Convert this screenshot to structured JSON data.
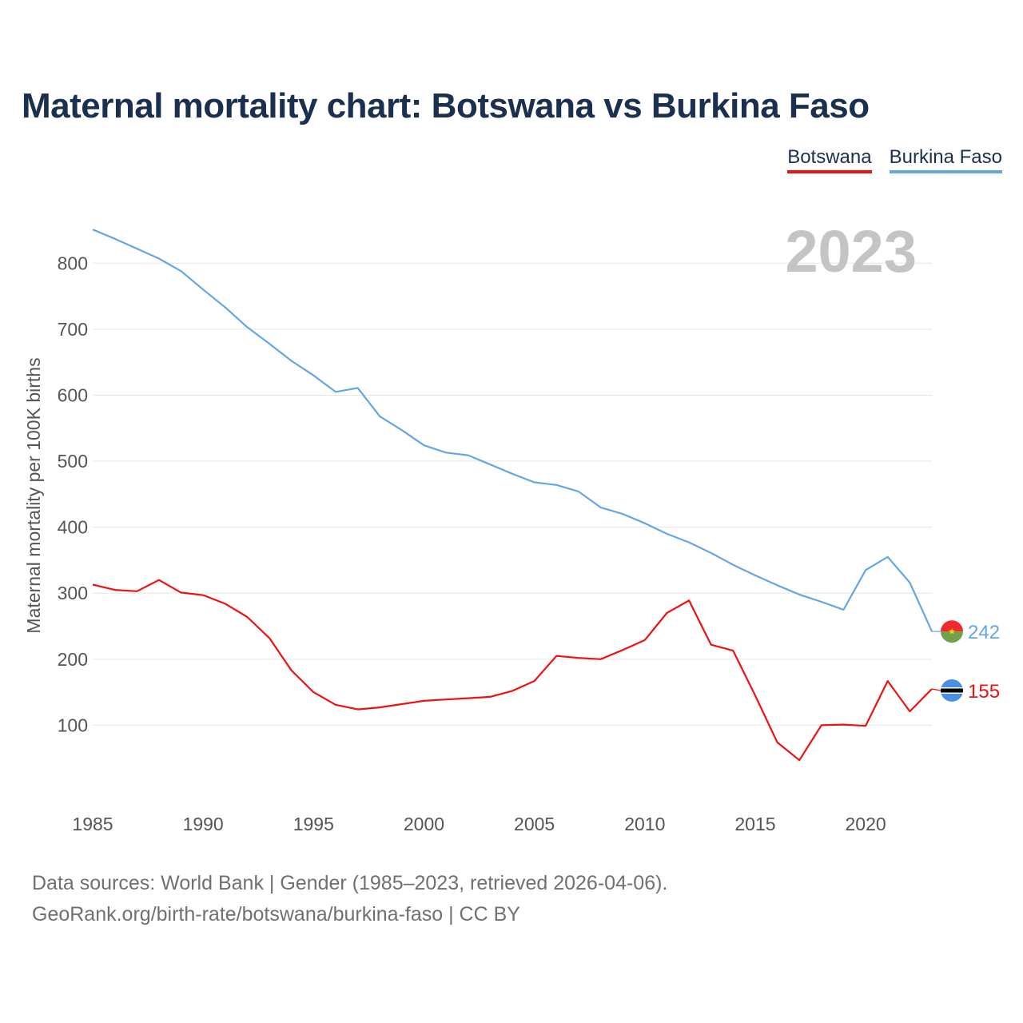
{
  "title": "Maternal mortality chart: Botswana vs Burkina Faso",
  "legend": [
    {
      "label": "Botswana",
      "color": "#ee1111"
    },
    {
      "label": "Burkina Faso",
      "color": "#63a6e8"
    }
  ],
  "footer": {
    "line1": "Data sources: World Bank | Gender (1985–2023, retrieved 2026-04-06).",
    "line2": "GeoRank.org/birth-rate/botswana/burkina-faso | CC BY"
  },
  "chart_data": {
    "type": "line",
    "title": "Maternal mortality chart: Botswana vs Burkina Faso",
    "year_label": "2023",
    "xlabel": "",
    "ylabel": "Maternal mortality per 100K births",
    "xlim": [
      1985,
      2023
    ],
    "ylim": [
      0,
      850
    ],
    "x_ticks": [
      1985,
      1990,
      1995,
      2000,
      2005,
      2010,
      2015,
      2020
    ],
    "y_ticks": [
      100,
      200,
      300,
      400,
      500,
      600,
      700,
      800
    ],
    "grid": true,
    "x": [
      1985,
      1986,
      1987,
      1988,
      1989,
      1990,
      1991,
      1992,
      1993,
      1994,
      1995,
      1996,
      1997,
      1998,
      1999,
      2000,
      2001,
      2002,
      2003,
      2004,
      2005,
      2006,
      2007,
      2008,
      2009,
      2010,
      2011,
      2012,
      2013,
      2014,
      2015,
      2016,
      2017,
      2018,
      2019,
      2020,
      2021,
      2022,
      2023
    ],
    "series": [
      {
        "name": "Botswana",
        "color": "#ee1111",
        "end_label": "155",
        "flag": "botswana",
        "values": [
          313,
          305,
          303,
          320,
          301,
          297,
          284,
          264,
          232,
          183,
          150,
          131,
          124,
          127,
          132,
          137,
          139,
          141,
          143,
          152,
          167,
          205,
          202,
          200,
          214,
          229,
          270,
          289,
          222,
          213,
          145,
          74,
          47,
          100,
          101,
          99,
          167,
          121,
          155
        ]
      },
      {
        "name": "Burkina Faso",
        "color": "#63a6e8",
        "end_label": "242",
        "flag": "burkina-faso",
        "values": [
          851,
          837,
          822,
          807,
          788,
          760,
          733,
          703,
          678,
          652,
          630,
          605,
          611,
          568,
          547,
          524,
          513,
          509,
          495,
          481,
          468,
          464,
          454,
          430,
          420,
          406,
          390,
          377,
          361,
          343,
          327,
          312,
          298,
          287,
          275,
          335,
          355,
          316,
          242
        ]
      }
    ]
  }
}
